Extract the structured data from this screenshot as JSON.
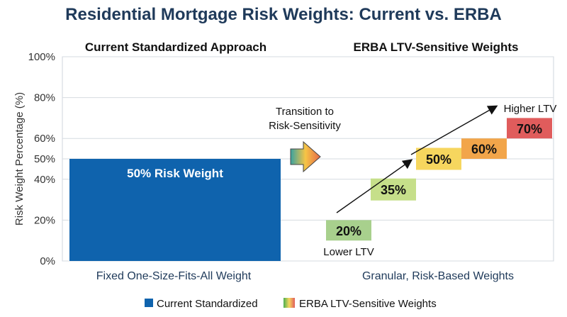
{
  "chart_data": {
    "type": "bar",
    "title": "Residential Mortgage Risk Weights: Current vs. ERBA",
    "ylabel": "Risk Weight Percentage (%)",
    "ylim": [
      0,
      100
    ],
    "yticks": [
      {
        "value": 0,
        "label": "0%"
      },
      {
        "value": 20,
        "label": "20%"
      },
      {
        "value": 40,
        "label": "40%"
      },
      {
        "value": 50,
        "label": "50%"
      },
      {
        "value": 60,
        "label": "60%"
      },
      {
        "value": 80,
        "label": "80%"
      },
      {
        "value": 100,
        "label": "100%"
      }
    ],
    "grid": true,
    "panels": [
      {
        "subtitle": "Current Standardized Approach",
        "caption": "Fixed One-Size-Fits-All Weight",
        "bars": [
          {
            "value": 50,
            "label": "50% Risk Weight",
            "color": "#0f63ad"
          }
        ]
      },
      {
        "subtitle": "ERBA LTV-Sensitive Weights",
        "caption": "Granular, Risk-Based Weights",
        "steps": [
          {
            "from": 10,
            "to": 20,
            "label": "20%",
            "color": "#a8d08d"
          },
          {
            "from": 35,
            "to": 35,
            "label": "35%",
            "color": "#c6df8a"
          },
          {
            "from": 50,
            "to": 50,
            "label": "50%",
            "color": "#f6d65e"
          },
          {
            "from": 50,
            "to": 60,
            "label": "60%",
            "color": "#f2a54a"
          },
          {
            "from": 60,
            "to": 70,
            "label": "70%",
            "color": "#e05c5c"
          }
        ],
        "low_label": "Lower LTV",
        "high_label": "Higher LTV"
      }
    ],
    "transition_label": [
      "Transition to",
      "Risk-Sensitivity"
    ],
    "legend": {
      "placement": "bottom",
      "items": [
        {
          "label": "Current Standardized",
          "color": "#0f63ad"
        },
        {
          "label": "ERBA LTV-Sensitive Weights",
          "gradient": [
            "#4caf50",
            "#f6d65e",
            "#e05c5c"
          ]
        }
      ]
    }
  }
}
